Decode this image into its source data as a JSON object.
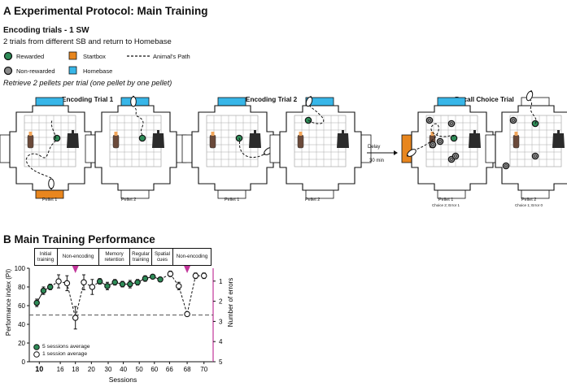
{
  "panel_a": {
    "title": "A   Experimental Protocol: Main Training",
    "subtitle": "Encoding trials - 1 SW",
    "description": "2 trials from different SB and return to Homebase",
    "note": "Retrieve 2 pellets per trial (one pellet by one pellet)",
    "legend": {
      "rewarded": "Rewarded",
      "non_rewarded": "Non-rewarded",
      "startbox": "Startbox",
      "homebase": "Homebase",
      "path": "Animal's Path"
    },
    "trials": {
      "t1": "Encoding Trial 1",
      "t2": "Encoding Trial 2",
      "t3": "Recall Choice Trial"
    },
    "captions": {
      "p1": "Pellet 1",
      "p2": "Pellet 2",
      "p3": "Pellet 1",
      "p4": "Pellet 2",
      "p5": "Pellet 1",
      "p5b": "Choice 2; Error 1",
      "p6": "Pellet 2",
      "p6b": "Choice 1; Error 0"
    },
    "delay": {
      "label": "Delay",
      "time": "30 min"
    },
    "colors": {
      "startbox": "#e8861e",
      "homebase": "#37b6e8",
      "rewarded": "#2e8b57",
      "non_rewarded": "#8c8c8c"
    }
  },
  "panel_b": {
    "title": "B   Main Training Performance",
    "phases": [
      "Initial training",
      "Non-encoding",
      "Memory retention",
      "Regular training",
      "Spatial cues",
      "Non-encoding"
    ],
    "legend": {
      "avg5": "5 sessions average",
      "avg1": "1 session average"
    },
    "marker_color": "#c2359a"
  },
  "chart_data": {
    "type": "line",
    "title": "Main Training Performance",
    "xlabel": "Sessions",
    "ylabel": "Performance index (PI)",
    "y2label": "Number of errors",
    "ylim": [
      0,
      100
    ],
    "yticks": [
      0,
      20,
      40,
      60,
      80,
      100
    ],
    "y2ticks": [
      "1",
      "2",
      "3",
      "4",
      "5"
    ],
    "x_tick_labels": [
      "10",
      "16",
      "18",
      "20",
      "30",
      "40",
      "50",
      "60",
      "66",
      "68",
      "70"
    ],
    "chance_level": 50,
    "marker_sessions": [
      "18",
      "68"
    ],
    "series": [
      {
        "name": "5 sessions average",
        "style": "filled",
        "points": [
          {
            "x": 0.6,
            "y": 63,
            "e": 4
          },
          {
            "x": 1.4,
            "y": 76,
            "e": 4
          },
          {
            "x": 2.2,
            "y": 80,
            "e": 3
          },
          {
            "x": 8.1,
            "y": 86,
            "e": 3
          },
          {
            "x": 9.0,
            "y": 81,
            "e": 4
          },
          {
            "x": 9.9,
            "y": 85,
            "e": 3
          },
          {
            "x": 10.8,
            "y": 83,
            "e": 3
          },
          {
            "x": 11.7,
            "y": 83,
            "e": 4
          },
          {
            "x": 12.6,
            "y": 85,
            "e": 3
          },
          {
            "x": 13.5,
            "y": 89,
            "e": 3
          },
          {
            "x": 14.4,
            "y": 91,
            "e": 2
          },
          {
            "x": 15.3,
            "y": 88,
            "e": 2
          }
        ]
      },
      {
        "name": "1 session average",
        "style": "open",
        "points": [
          {
            "x": 3.2,
            "y": 86,
            "e": 7
          },
          {
            "x": 4.2,
            "y": 84,
            "e": 8
          },
          {
            "x": 5.2,
            "y": 47,
            "e": 12
          },
          {
            "x": 6.2,
            "y": 85,
            "e": 8
          },
          {
            "x": 7.2,
            "y": 80,
            "e": 8
          },
          {
            "x": 16.5,
            "y": 94,
            "e": 3
          },
          {
            "x": 17.5,
            "y": 81,
            "e": 4
          },
          {
            "x": 18.5,
            "y": 51,
            "e": 2
          },
          {
            "x": 19.5,
            "y": 92,
            "e": 3
          },
          {
            "x": 20.5,
            "y": 92,
            "e": 3
          }
        ]
      }
    ]
  }
}
